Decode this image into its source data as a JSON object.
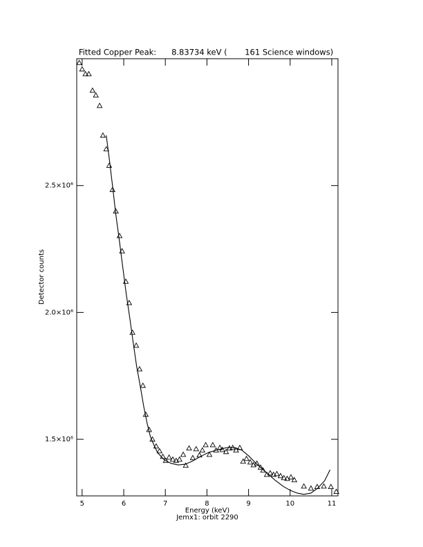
{
  "chart_data": {
    "type": "scatter",
    "title": "Fitted Copper Peak:      8.83734 keV (       161 Science windows)",
    "x_label": "Energy (keV)",
    "subtitle": "Jemx1: orbit 2290",
    "y_label": "Detector counts",
    "xlim": [
      4.87,
      11.15
    ],
    "ylim": [
      1277000,
      3000000
    ],
    "xticks": [
      5,
      6,
      7,
      8,
      9,
      10,
      11
    ],
    "yticks": [
      {
        "value": 1500000,
        "label": "1.5×10⁶"
      },
      {
        "value": 2000000,
        "label": "2.0×10⁶"
      },
      {
        "value": 2500000,
        "label": "2.5×10⁶"
      }
    ],
    "color": "#000000",
    "series": [
      {
        "style": "triangles",
        "x": [
          4.93,
          5.0,
          5.08,
          5.16,
          5.25,
          5.33,
          5.42,
          5.5,
          5.58,
          5.65,
          5.73,
          5.81,
          5.9,
          5.96,
          6.05,
          6.13,
          6.21,
          6.3,
          6.38,
          6.46,
          6.53,
          6.61,
          6.69,
          6.78,
          6.86,
          6.94,
          7.01,
          7.09,
          7.18,
          7.26,
          7.34,
          7.43,
          7.49,
          7.57,
          7.66,
          7.74,
          7.82,
          7.89,
          7.97,
          8.06,
          8.14,
          8.22,
          8.31,
          8.37,
          8.46,
          8.54,
          8.62,
          8.7,
          8.79,
          8.87,
          8.95,
          9.04,
          9.12,
          9.2,
          9.29,
          9.35,
          9.44,
          9.52,
          9.6,
          9.68,
          9.77,
          9.85,
          9.93,
          10.02,
          10.1,
          10.33,
          10.5,
          10.65,
          10.81,
          10.98,
          11.11
        ],
        "values": [
          2984000,
          2959000,
          2940000,
          2940000,
          2875000,
          2856000,
          2815000,
          2698000,
          2644000,
          2579000,
          2484000,
          2399000,
          2302000,
          2242000,
          2122000,
          2038000,
          1921000,
          1870000,
          1777000,
          1712000,
          1598000,
          1538000,
          1500000,
          1473000,
          1454000,
          1432000,
          1416000,
          1429000,
          1421000,
          1416000,
          1421000,
          1440000,
          1397000,
          1465000,
          1427000,
          1462000,
          1438000,
          1457000,
          1478000,
          1440000,
          1478000,
          1457000,
          1467000,
          1459000,
          1451000,
          1465000,
          1467000,
          1457000,
          1467000,
          1413000,
          1424000,
          1410000,
          1399000,
          1405000,
          1389000,
          1378000,
          1361000,
          1367000,
          1361000,
          1364000,
          1356000,
          1348000,
          1345000,
          1351000,
          1340000,
          1315000,
          1307000,
          1313000,
          1315000,
          1313000,
          1294000
        ]
      },
      {
        "style": "line",
        "x": [
          5.58,
          5.65,
          5.73,
          5.81,
          5.9,
          5.98,
          6.06,
          6.15,
          6.23,
          6.31,
          6.4,
          6.48,
          6.56,
          6.64,
          6.73,
          6.81,
          6.98,
          7.14,
          7.31,
          7.48,
          7.64,
          7.84,
          8.04,
          8.26,
          8.47,
          8.67,
          8.84,
          9.0,
          9.2,
          9.42,
          9.63,
          9.83,
          10.0,
          10.17,
          10.33,
          10.5,
          10.66,
          10.83,
          10.96
        ],
        "values": [
          2698000,
          2609000,
          2500000,
          2386000,
          2277000,
          2174000,
          2073000,
          1973000,
          1878000,
          1788000,
          1707000,
          1630000,
          1565000,
          1511000,
          1476000,
          1448000,
          1418000,
          1405000,
          1399000,
          1402000,
          1413000,
          1432000,
          1448000,
          1459000,
          1467000,
          1467000,
          1457000,
          1435000,
          1402000,
          1370000,
          1340000,
          1315000,
          1299000,
          1288000,
          1283000,
          1288000,
          1307000,
          1337000,
          1380000
        ]
      }
    ]
  }
}
